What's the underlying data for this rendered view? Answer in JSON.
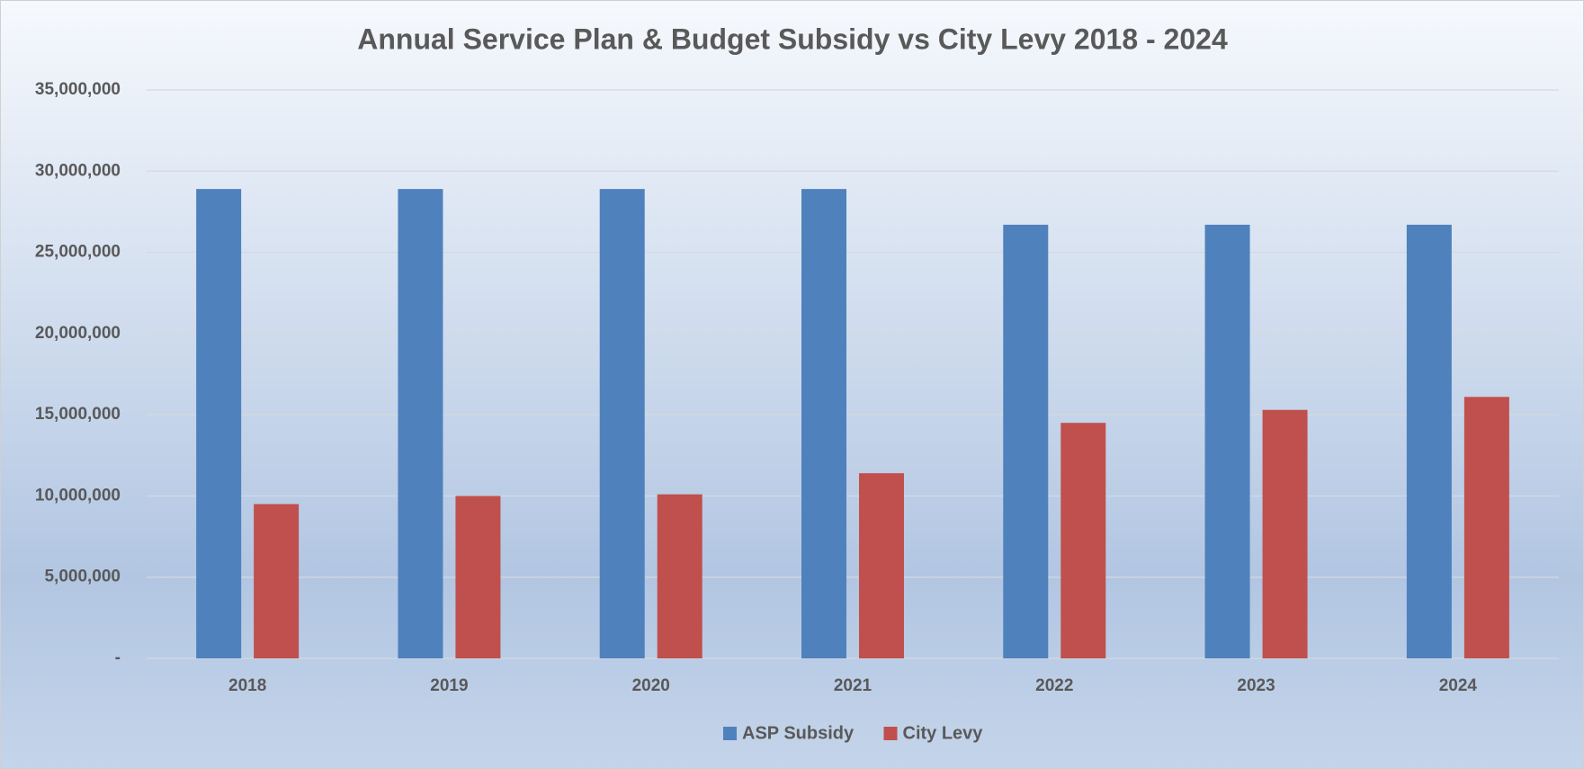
{
  "chart_data": {
    "type": "bar",
    "title": "Annual Service Plan & Budget Subsidy vs City Levy 2018 - 2024",
    "categories": [
      "2018",
      "2019",
      "2020",
      "2021",
      "2022",
      "2023",
      "2024"
    ],
    "series": [
      {
        "name": "ASP Subsidy",
        "color": "#4f81bd",
        "values": [
          28900000,
          28900000,
          28900000,
          28900000,
          26700000,
          26700000,
          26700000
        ]
      },
      {
        "name": "City Levy",
        "color": "#c0504d",
        "values": [
          9500000,
          10000000,
          10100000,
          11400000,
          14500000,
          15300000,
          16100000
        ]
      }
    ],
    "ylim": [
      0,
      35000000
    ],
    "yticks": [
      {
        "value": 0,
        "label": "-"
      },
      {
        "value": 5000000,
        "label": "5,000,000"
      },
      {
        "value": 10000000,
        "label": "10,000,000"
      },
      {
        "value": 15000000,
        "label": "15,000,000"
      },
      {
        "value": 20000000,
        "label": "20,000,000"
      },
      {
        "value": 25000000,
        "label": "25,000,000"
      },
      {
        "value": 30000000,
        "label": "30,000,000"
      },
      {
        "value": 35000000,
        "label": "35,000,000"
      }
    ],
    "grid": true,
    "legend": "bottom"
  }
}
